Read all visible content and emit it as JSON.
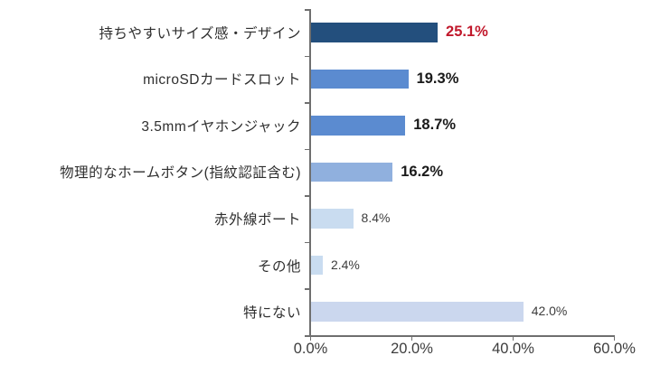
{
  "chart_data": {
    "type": "bar",
    "orientation": "horizontal",
    "title": "",
    "xlabel": "",
    "ylabel": "",
    "categories": [
      "持ちやすいサイズ感・デザイン",
      "microSDカードスロット",
      "3.5mmイヤホンジャック",
      "物理的なホームボタン(指紋認証含む)",
      "赤外線ポート",
      "その他",
      "特にない"
    ],
    "values": [
      25.1,
      19.3,
      18.7,
      16.2,
      8.4,
      2.4,
      42.0
    ],
    "value_labels": [
      "25.1%",
      "19.3%",
      "18.7%",
      "16.2%",
      "8.4%",
      "2.4%",
      "42.0%"
    ],
    "bar_colors": [
      "#234f7d",
      "#5b8bd0",
      "#5b8bd0",
      "#90b0de",
      "#c9dcf0",
      "#c9dcf0",
      "#cbd7ee"
    ],
    "value_label_colors": [
      "#c1182b",
      "#1a1a1a",
      "#1a1a1a",
      "#1a1a1a",
      "#3d3d3d",
      "#3d3d3d",
      "#3d3d3d"
    ],
    "value_label_bold": [
      true,
      true,
      true,
      true,
      false,
      false,
      false
    ],
    "xlim": [
      0,
      60
    ],
    "x_tick_values": [
      0,
      20,
      40,
      60
    ],
    "x_tick_labels": [
      "0.0%",
      "20.0%",
      "40.0%",
      "60.0%"
    ],
    "axis_color": "#6f6f6f",
    "grid": false,
    "legend": null
  }
}
